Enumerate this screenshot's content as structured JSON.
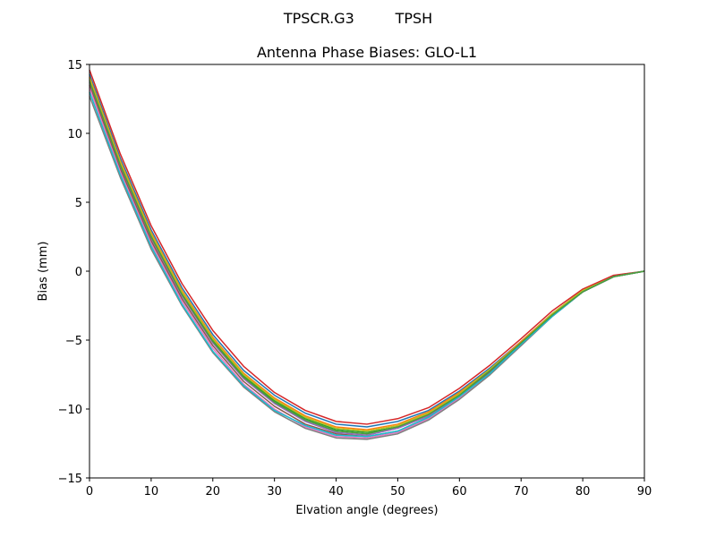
{
  "suptitle": "TPSCR.G3         TPSH",
  "chart_data": {
    "type": "line",
    "title": "Antenna Phase Biases: GLO-L1",
    "xlabel": "Elvation angle (degrees)",
    "ylabel": "Bias (mm)",
    "xlim": [
      0,
      90
    ],
    "ylim": [
      -15,
      15
    ],
    "xticks": [
      0,
      10,
      20,
      30,
      40,
      50,
      60,
      70,
      80,
      90
    ],
    "yticks": [
      -15,
      -10,
      -5,
      0,
      5,
      10,
      15
    ],
    "grid": false,
    "legend": "none",
    "x": [
      0,
      5,
      10,
      15,
      20,
      25,
      30,
      35,
      40,
      45,
      50,
      55,
      60,
      65,
      70,
      75,
      80,
      85,
      90
    ],
    "series": [
      {
        "color": "#1f77b4",
        "values": [
          14.3,
          8.2,
          3.0,
          -1.2,
          -4.6,
          -7.2,
          -9.0,
          -10.3,
          -11.1,
          -11.3,
          -10.9,
          -10.1,
          -8.7,
          -7.0,
          -5.1,
          -3.1,
          -1.4,
          -0.4,
          0.0
        ]
      },
      {
        "color": "#ff7f0e",
        "values": [
          14.1,
          8.0,
          2.8,
          -1.4,
          -4.8,
          -7.4,
          -9.2,
          -10.5,
          -11.3,
          -11.5,
          -11.1,
          -10.2,
          -8.8,
          -7.1,
          -5.1,
          -3.1,
          -1.4,
          -0.4,
          0.0
        ]
      },
      {
        "color": "#2ca02c",
        "values": [
          13.9,
          7.8,
          2.6,
          -1.6,
          -5.0,
          -7.6,
          -9.4,
          -10.7,
          -11.5,
          -11.7,
          -11.3,
          -10.4,
          -8.9,
          -7.2,
          -5.2,
          -3.2,
          -1.5,
          -0.4,
          0.0
        ]
      },
      {
        "color": "#d62728",
        "values": [
          14.6,
          8.5,
          3.3,
          -0.9,
          -4.3,
          -6.9,
          -8.8,
          -10.1,
          -10.9,
          -11.1,
          -10.7,
          -9.9,
          -8.5,
          -6.8,
          -4.9,
          -2.9,
          -1.3,
          -0.3,
          0.0
        ]
      },
      {
        "color": "#9467bd",
        "values": [
          13.7,
          7.6,
          2.4,
          -1.8,
          -5.2,
          -7.8,
          -9.6,
          -10.9,
          -11.7,
          -11.9,
          -11.4,
          -10.5,
          -9.0,
          -7.3,
          -5.3,
          -3.2,
          -1.5,
          -0.4,
          0.0
        ]
      },
      {
        "color": "#8c564b",
        "values": [
          13.5,
          7.4,
          2.2,
          -2.0,
          -5.4,
          -8.0,
          -9.8,
          -11.1,
          -11.8,
          -12.0,
          -11.6,
          -10.6,
          -9.1,
          -7.3,
          -5.3,
          -3.3,
          -1.5,
          -0.4,
          0.0
        ]
      },
      {
        "color": "#e377c2",
        "values": [
          13.3,
          7.2,
          2.0,
          -2.2,
          -5.6,
          -8.2,
          -10.0,
          -11.3,
          -12.0,
          -12.1,
          -11.7,
          -10.7,
          -9.2,
          -7.4,
          -5.4,
          -3.3,
          -1.5,
          -0.4,
          0.0
        ]
      },
      {
        "color": "#7f7f7f",
        "values": [
          12.7,
          6.8,
          1.6,
          -2.5,
          -5.9,
          -8.4,
          -10.2,
          -11.4,
          -12.1,
          -12.2,
          -11.8,
          -10.8,
          -9.3,
          -7.5,
          -5.4,
          -3.3,
          -1.5,
          -0.4,
          0.0
        ]
      },
      {
        "color": "#bcbd22",
        "values": [
          14.0,
          7.9,
          2.7,
          -1.5,
          -4.9,
          -7.5,
          -9.3,
          -10.6,
          -11.4,
          -11.6,
          -11.2,
          -10.3,
          -8.9,
          -7.1,
          -5.2,
          -3.1,
          -1.4,
          -0.4,
          0.0
        ]
      },
      {
        "color": "#17becf",
        "values": [
          13.0,
          7.0,
          1.8,
          -2.4,
          -5.8,
          -8.3,
          -10.1,
          -11.2,
          -11.9,
          -12.0,
          -11.6,
          -10.6,
          -9.1,
          -7.4,
          -5.3,
          -3.3,
          -1.5,
          -0.4,
          0.0
        ]
      },
      {
        "color": "#4c9a3c",
        "values": [
          13.8,
          7.7,
          2.5,
          -1.7,
          -5.1,
          -7.7,
          -9.5,
          -10.8,
          -11.6,
          -11.8,
          -11.3,
          -10.4,
          -9.0,
          -7.2,
          -5.2,
          -3.2,
          -1.5,
          -0.4,
          0.0
        ]
      }
    ]
  }
}
